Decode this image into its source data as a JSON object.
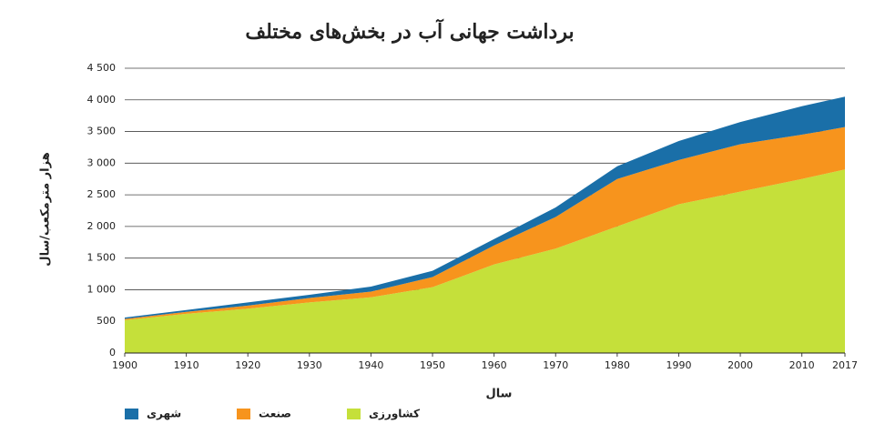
{
  "chart_data": {
    "type": "stacked_area",
    "title": "برداشت جهانی آب در بخش‌های مختلف",
    "y_label": "هزار مترمکعب/سال",
    "x_label": "سال",
    "x": [
      1900,
      1910,
      1920,
      1930,
      1940,
      1950,
      1960,
      1970,
      1980,
      1990,
      2000,
      2010,
      2017
    ],
    "series": [
      {
        "name": "کشاورزی",
        "color": "#c5e03a",
        "values": [
          520,
          620,
          700,
          800,
          880,
          1040,
          1400,
          1650,
          2000,
          2350,
          2550,
          2750,
          2900
        ]
      },
      {
        "name": "صنعت",
        "color": "#f7941d",
        "values": [
          20,
          30,
          50,
          70,
          90,
          160,
          300,
          500,
          750,
          700,
          750,
          700,
          670
        ]
      },
      {
        "name": "شهری",
        "color": "#1a6fa8",
        "values": [
          20,
          30,
          50,
          50,
          80,
          100,
          100,
          150,
          200,
          300,
          350,
          450,
          480
        ]
      }
    ],
    "xlim": [
      1900,
      2017
    ],
    "xticks": [
      1900,
      1910,
      1920,
      1930,
      1940,
      1950,
      1960,
      1970,
      1980,
      1990,
      2000,
      2010,
      2017
    ],
    "ylim": [
      0,
      4500
    ],
    "yticks": [
      0,
      500,
      {
        "value": 1000,
        "label": "1 000"
      },
      {
        "value": 1500,
        "label": "1 500"
      },
      {
        "value": 2000,
        "label": "2 000"
      },
      {
        "value": 2500,
        "label": "2 500"
      },
      {
        "value": 3000,
        "label": "3 000"
      },
      {
        "value": 3500,
        "label": "3 500"
      },
      {
        "value": 4000,
        "label": "4 000"
      },
      {
        "value": 4500,
        "label": "4 500"
      }
    ],
    "grid": true
  }
}
